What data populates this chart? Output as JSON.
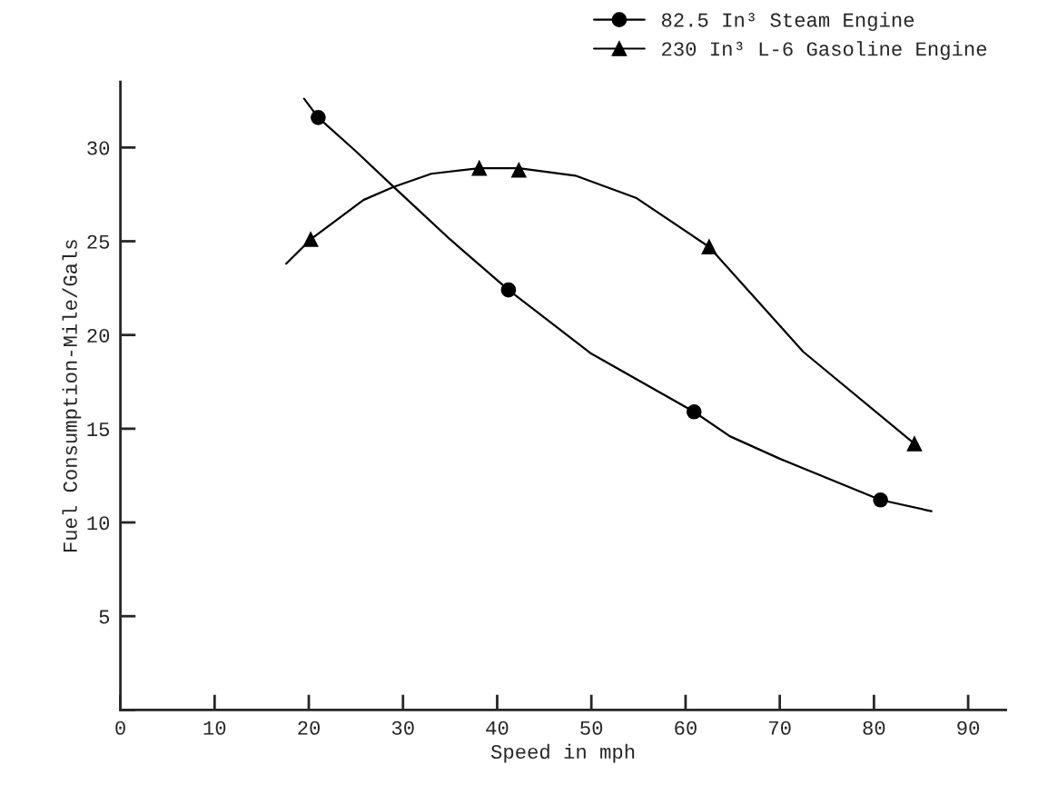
{
  "chart_data": {
    "type": "scatter",
    "xlabel": "Speed in mph",
    "ylabel": "Fuel Consumption-Mile/Gals",
    "xlim": [
      0,
      94
    ],
    "ylim": [
      0,
      33.5
    ],
    "xticks": [
      0,
      10,
      20,
      30,
      40,
      50,
      60,
      70,
      80,
      90
    ],
    "yticks": [
      {
        "value": 0,
        "label": null
      },
      5,
      10,
      15,
      20,
      25,
      30
    ],
    "grid": false,
    "legend": "top right",
    "series": [
      {
        "type": "line",
        "color": "#000000",
        "marker": "none",
        "x": [
          19.5,
          21.0,
          25.0,
          29.0,
          35.0,
          41.2,
          50.0,
          60.9,
          64.7,
          70.0,
          80.7,
          86.1
        ],
        "values": [
          32.6,
          31.6,
          29.8,
          27.9,
          25.1,
          22.4,
          19.0,
          15.9,
          14.6,
          13.4,
          11.2,
          10.6
        ]
      },
      {
        "type": "line",
        "color": "#000000",
        "marker": "none",
        "x": [
          17.6,
          20.2,
          25.8,
          29.0,
          33.0,
          38.1,
          42.3,
          48.3,
          54.8,
          62.5,
          72.5,
          84.3
        ],
        "values": [
          23.8,
          25.1,
          27.2,
          27.9,
          28.6,
          28.9,
          28.9,
          28.5,
          27.3,
          24.7,
          19.1,
          14.2
        ]
      },
      {
        "name": "82.5 In³ Steam Engine",
        "color": "#000000",
        "marker": "circle",
        "x": [
          21.0,
          41.2,
          60.9,
          80.7
        ],
        "values": [
          31.6,
          22.4,
          15.9,
          11.2
        ]
      },
      {
        "name": "230 In³ L-6 Gasoline Engine",
        "color": "#000000",
        "marker": "triangle",
        "x": [
          20.2,
          38.1,
          42.3,
          62.5,
          84.3
        ],
        "values": [
          25.1,
          28.9,
          28.8,
          24.7,
          14.2
        ]
      }
    ]
  }
}
